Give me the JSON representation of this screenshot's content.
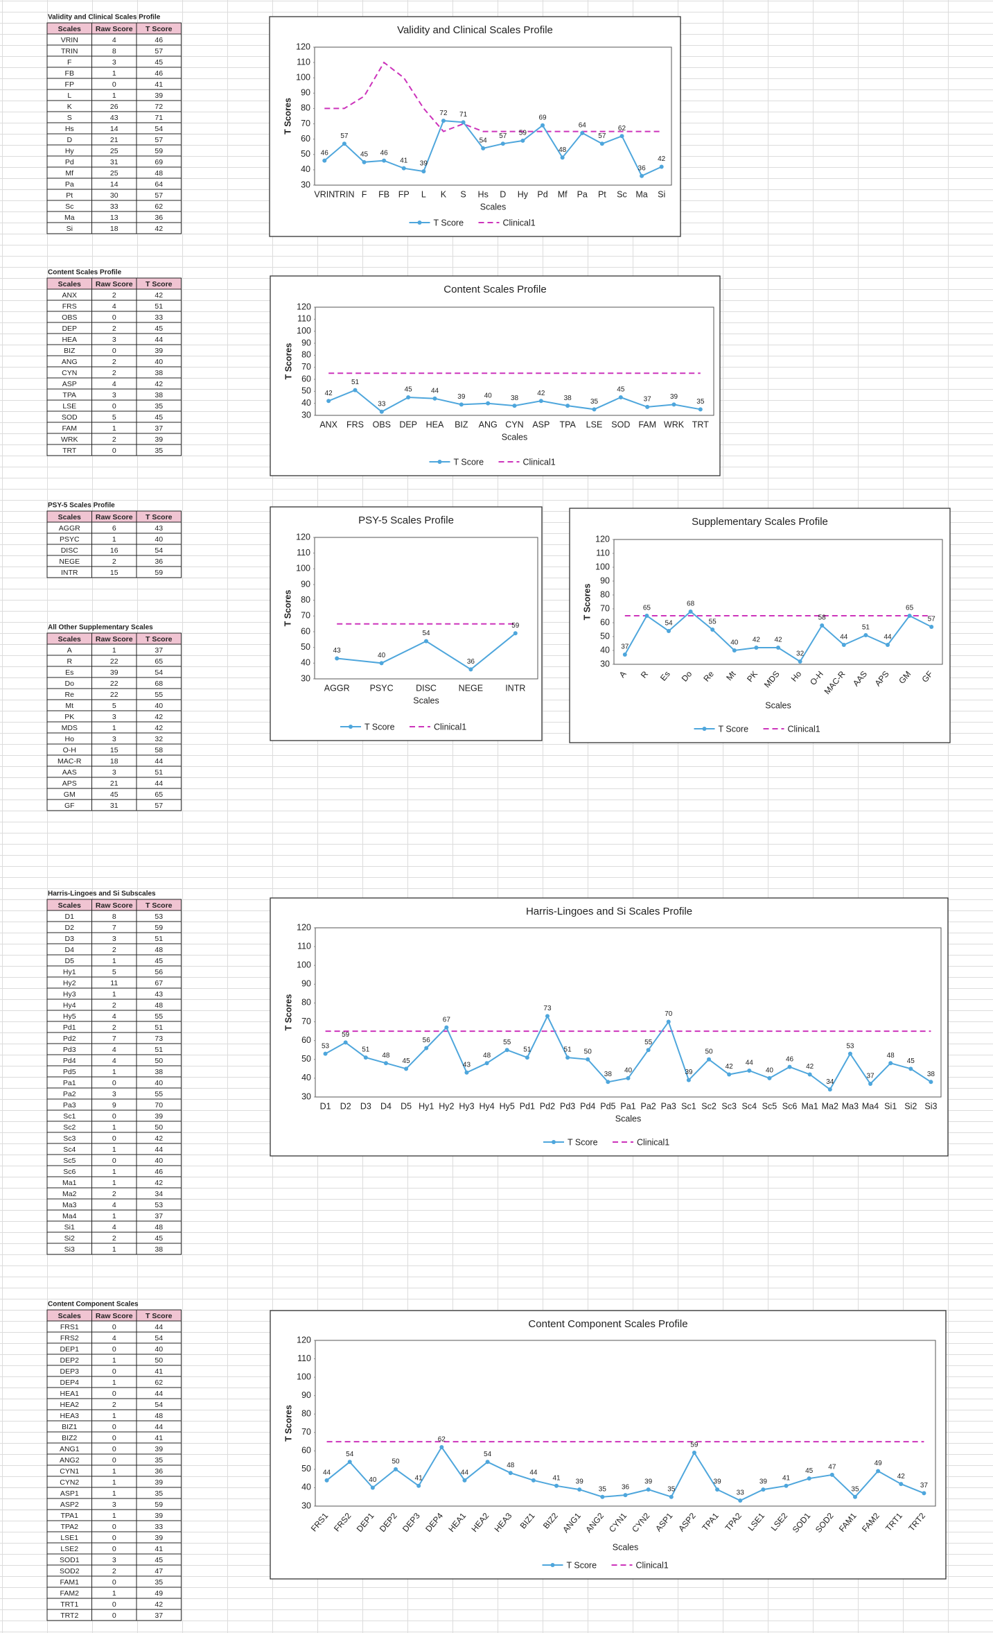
{
  "tables": [
    {
      "title": "Validity and Clinical Scales Profile",
      "header": [
        "Scales",
        "Raw Score",
        "T Score"
      ],
      "rows": [
        [
          "VRIN",
          4,
          46
        ],
        [
          "TRIN",
          8,
          57
        ],
        [
          "F",
          3,
          45
        ],
        [
          "FB",
          1,
          46
        ],
        [
          "FP",
          0,
          41
        ],
        [
          "L",
          1,
          39
        ],
        [
          "K",
          26,
          72
        ],
        [
          "S",
          43,
          71
        ],
        [
          "Hs",
          14,
          54
        ],
        [
          "D",
          21,
          57
        ],
        [
          "Hy",
          25,
          59
        ],
        [
          "Pd",
          31,
          69
        ],
        [
          "Mf",
          25,
          48
        ],
        [
          "Pa",
          14,
          64
        ],
        [
          "Pt",
          30,
          57
        ],
        [
          "Sc",
          33,
          62
        ],
        [
          "Ma",
          13,
          36
        ],
        [
          "Si",
          18,
          42
        ]
      ]
    },
    {
      "title": "Content Scales Profile",
      "header": [
        "Scales",
        "Raw Score",
        "T Score"
      ],
      "rows": [
        [
          "ANX",
          2,
          42
        ],
        [
          "FRS",
          4,
          51
        ],
        [
          "OBS",
          0,
          33
        ],
        [
          "DEP",
          2,
          45
        ],
        [
          "HEA",
          3,
          44
        ],
        [
          "BIZ",
          0,
          39
        ],
        [
          "ANG",
          2,
          40
        ],
        [
          "CYN",
          2,
          38
        ],
        [
          "ASP",
          4,
          42
        ],
        [
          "TPA",
          3,
          38
        ],
        [
          "LSE",
          0,
          35
        ],
        [
          "SOD",
          5,
          45
        ],
        [
          "FAM",
          1,
          37
        ],
        [
          "WRK",
          2,
          39
        ],
        [
          "TRT",
          0,
          35
        ]
      ]
    },
    {
      "title": "PSY-5 Scales Profile",
      "header": [
        "Scales",
        "Raw Score",
        "T Score"
      ],
      "rows": [
        [
          "AGGR",
          6,
          43
        ],
        [
          "PSYC",
          1,
          40
        ],
        [
          "DISC",
          16,
          54
        ],
        [
          "NEGE",
          2,
          36
        ],
        [
          "INTR",
          15,
          59
        ]
      ]
    },
    {
      "title": "All Other Supplementary Scales",
      "header": [
        "Scales",
        "Raw Score",
        "T Score"
      ],
      "rows": [
        [
          "A",
          1,
          37
        ],
        [
          "R",
          22,
          65
        ],
        [
          "Es",
          39,
          54
        ],
        [
          "Do",
          22,
          68
        ],
        [
          "Re",
          22,
          55
        ],
        [
          "Mt",
          5,
          40
        ],
        [
          "PK",
          3,
          42
        ],
        [
          "MDS",
          1,
          42
        ],
        [
          "Ho",
          3,
          32
        ],
        [
          "O-H",
          15,
          58
        ],
        [
          "MAC-R",
          18,
          44
        ],
        [
          "AAS",
          3,
          51
        ],
        [
          "APS",
          21,
          44
        ],
        [
          "GM",
          45,
          65
        ],
        [
          "GF",
          31,
          57
        ]
      ]
    },
    {
      "title": "Harris-Lingoes and Si Subscales",
      "header": [
        "Scales",
        "Raw Score",
        "T Score"
      ],
      "rows": [
        [
          "D1",
          8,
          53
        ],
        [
          "D2",
          7,
          59
        ],
        [
          "D3",
          3,
          51
        ],
        [
          "D4",
          2,
          48
        ],
        [
          "D5",
          1,
          45
        ],
        [
          "Hy1",
          5,
          56
        ],
        [
          "Hy2",
          11,
          67
        ],
        [
          "Hy3",
          1,
          43
        ],
        [
          "Hy4",
          2,
          48
        ],
        [
          "Hy5",
          4,
          55
        ],
        [
          "Pd1",
          2,
          51
        ],
        [
          "Pd2",
          7,
          73
        ],
        [
          "Pd3",
          4,
          51
        ],
        [
          "Pd4",
          4,
          50
        ],
        [
          "Pd5",
          1,
          38
        ],
        [
          "Pa1",
          0,
          40
        ],
        [
          "Pa2",
          3,
          55
        ],
        [
          "Pa3",
          9,
          70
        ],
        [
          "Sc1",
          0,
          39
        ],
        [
          "Sc2",
          1,
          50
        ],
        [
          "Sc3",
          0,
          42
        ],
        [
          "Sc4",
          1,
          44
        ],
        [
          "Sc5",
          0,
          40
        ],
        [
          "Sc6",
          1,
          46
        ],
        [
          "Ma1",
          1,
          42
        ],
        [
          "Ma2",
          2,
          34
        ],
        [
          "Ma3",
          4,
          53
        ],
        [
          "Ma4",
          1,
          37
        ],
        [
          "Si1",
          4,
          48
        ],
        [
          "Si2",
          2,
          45
        ],
        [
          "Si3",
          1,
          38
        ]
      ]
    },
    {
      "title": "Content Component Scales",
      "header": [
        "Scales",
        "Raw Score",
        "T Score"
      ],
      "rows": [
        [
          "FRS1",
          0,
          44
        ],
        [
          "FRS2",
          4,
          54
        ],
        [
          "DEP1",
          0,
          40
        ],
        [
          "DEP2",
          1,
          50
        ],
        [
          "DEP3",
          0,
          41
        ],
        [
          "DEP4",
          1,
          62
        ],
        [
          "HEA1",
          0,
          44
        ],
        [
          "HEA2",
          2,
          54
        ],
        [
          "HEA3",
          1,
          48
        ],
        [
          "BIZ1",
          0,
          44
        ],
        [
          "BIZ2",
          0,
          41
        ],
        [
          "ANG1",
          0,
          39
        ],
        [
          "ANG2",
          0,
          35
        ],
        [
          "CYN1",
          1,
          36
        ],
        [
          "CYN2",
          1,
          39
        ],
        [
          "ASP1",
          1,
          35
        ],
        [
          "ASP2",
          3,
          59
        ],
        [
          "TPA1",
          1,
          39
        ],
        [
          "TPA2",
          0,
          33
        ],
        [
          "LSE1",
          0,
          39
        ],
        [
          "LSE2",
          0,
          41
        ],
        [
          "SOD1",
          3,
          45
        ],
        [
          "SOD2",
          2,
          47
        ],
        [
          "FAM1",
          0,
          35
        ],
        [
          "FAM2",
          1,
          49
        ],
        [
          "TRT1",
          0,
          42
        ],
        [
          "TRT2",
          0,
          37
        ]
      ]
    }
  ],
  "chart_data": [
    {
      "type": "line",
      "title": "Validity and Clinical Scales Profile",
      "x_label": "Scales",
      "y_label": "T Scores",
      "legend": "bottom",
      "grid": false,
      "ylim": [
        30,
        120
      ],
      "yticks": [
        30,
        40,
        50,
        60,
        70,
        80,
        90,
        100,
        110,
        120
      ],
      "categories": [
        "VRIN",
        "TRIN",
        "F",
        "FB",
        "FP",
        "L",
        "K",
        "S",
        "Hs",
        "D",
        "Hy",
        "Pd",
        "Mf",
        "Pa",
        "Pt",
        "Sc",
        "Ma",
        "Si"
      ],
      "series": [
        {
          "name": "T Score",
          "color": "#4ea6dc",
          "dash": false,
          "markers": true,
          "data_labels": true,
          "values": [
            46,
            57,
            45,
            46,
            41,
            39,
            72,
            71,
            54,
            57,
            59,
            69,
            48,
            64,
            57,
            62,
            36,
            42
          ]
        },
        {
          "name": "Clinical1",
          "color": "#cc33bb",
          "dash": true,
          "markers": false,
          "data_labels": false,
          "values": [
            80,
            80,
            88,
            110,
            100,
            80,
            65,
            70,
            65,
            65,
            65,
            65,
            65,
            65,
            65,
            65,
            65,
            65
          ]
        }
      ]
    },
    {
      "type": "line",
      "title": "Content Scales Profile",
      "x_label": "Scales",
      "y_label": "T Scores",
      "legend": "bottom",
      "grid": false,
      "ylim": [
        30,
        120
      ],
      "yticks": [
        30,
        40,
        50,
        60,
        70,
        80,
        90,
        100,
        110,
        120
      ],
      "categories": [
        "ANX",
        "FRS",
        "OBS",
        "DEP",
        "HEA",
        "BIZ",
        "ANG",
        "CYN",
        "ASP",
        "TPA",
        "LSE",
        "SOD",
        "FAM",
        "WRK",
        "TRT"
      ],
      "series": [
        {
          "name": "T Score",
          "color": "#4ea6dc",
          "dash": false,
          "markers": true,
          "data_labels": true,
          "values": [
            42,
            51,
            33,
            45,
            44,
            39,
            40,
            38,
            42,
            38,
            35,
            45,
            37,
            39,
            35
          ]
        },
        {
          "name": "Clinical1",
          "color": "#cc33bb",
          "dash": true,
          "markers": false,
          "data_labels": false,
          "values": [
            65,
            65,
            65,
            65,
            65,
            65,
            65,
            65,
            65,
            65,
            65,
            65,
            65,
            65,
            65
          ]
        }
      ]
    },
    {
      "type": "line",
      "title": "PSY-5 Scales Profile",
      "x_label": "Scales",
      "y_label": "T Scores",
      "legend": "bottom",
      "grid": false,
      "ylim": [
        30,
        120
      ],
      "yticks": [
        30,
        40,
        50,
        60,
        70,
        80,
        90,
        100,
        110,
        120
      ],
      "categories": [
        "AGGR",
        "PSYC",
        "DISC",
        "NEGE",
        "INTR"
      ],
      "series": [
        {
          "name": "T Score",
          "color": "#4ea6dc",
          "dash": false,
          "markers": true,
          "data_labels": true,
          "values": [
            43,
            40,
            54,
            36,
            59
          ]
        },
        {
          "name": "Clinical1",
          "color": "#cc33bb",
          "dash": true,
          "markers": false,
          "data_labels": false,
          "values": [
            65,
            65,
            65,
            65,
            65
          ]
        }
      ]
    },
    {
      "type": "line",
      "title": "Supplementary Scales Profile",
      "x_label": "Scales",
      "y_label": "T Scores",
      "legend": "bottom",
      "grid": false,
      "ylim": [
        30,
        120
      ],
      "yticks": [
        30,
        40,
        50,
        60,
        70,
        80,
        90,
        100,
        110,
        120
      ],
      "categories": [
        "A",
        "R",
        "Es",
        "Do",
        "Re",
        "Mt",
        "PK",
        "MDS",
        "Ho",
        "O-H",
        "MAC-R",
        "AAS",
        "APS",
        "GM",
        "GF"
      ],
      "series": [
        {
          "name": "T Score",
          "color": "#4ea6dc",
          "dash": false,
          "markers": true,
          "data_labels": true,
          "values": [
            37,
            65,
            54,
            68,
            55,
            40,
            42,
            42,
            32,
            58,
            44,
            51,
            44,
            65,
            57
          ]
        },
        {
          "name": "Clinical1",
          "color": "#cc33bb",
          "dash": true,
          "markers": false,
          "data_labels": false,
          "values": [
            65,
            65,
            65,
            65,
            65,
            65,
            65,
            65,
            65,
            65,
            65,
            65,
            65,
            65,
            65
          ]
        }
      ]
    },
    {
      "type": "line",
      "title": "Harris-Lingoes and Si Scales Profile",
      "x_label": "Scales",
      "y_label": "T Scores",
      "legend": "bottom",
      "grid": false,
      "ylim": [
        30,
        120
      ],
      "yticks": [
        30,
        40,
        50,
        60,
        70,
        80,
        90,
        100,
        110,
        120
      ],
      "categories": [
        "D1",
        "D2",
        "D3",
        "D4",
        "D5",
        "Hy1",
        "Hy2",
        "Hy3",
        "Hy4",
        "Hy5",
        "Pd1",
        "Pd2",
        "Pd3",
        "Pd4",
        "Pd5",
        "Pa1",
        "Pa2",
        "Pa3",
        "Sc1",
        "Sc2",
        "Sc3",
        "Sc4",
        "Sc5",
        "Sc6",
        "Ma1",
        "Ma2",
        "Ma3",
        "Ma4",
        "Si1",
        "Si2",
        "Si3"
      ],
      "series": [
        {
          "name": "T Score",
          "color": "#4ea6dc",
          "dash": false,
          "markers": true,
          "data_labels": true,
          "values": [
            53,
            59,
            51,
            48,
            45,
            56,
            67,
            43,
            48,
            55,
            51,
            73,
            51,
            50,
            38,
            40,
            55,
            70,
            39,
            50,
            42,
            44,
            40,
            46,
            42,
            34,
            53,
            37,
            48,
            45,
            38
          ]
        },
        {
          "name": "Clinical1",
          "color": "#cc33bb",
          "dash": true,
          "markers": false,
          "data_labels": false,
          "values": [
            65,
            65,
            65,
            65,
            65,
            65,
            65,
            65,
            65,
            65,
            65,
            65,
            65,
            65,
            65,
            65,
            65,
            65,
            65,
            65,
            65,
            65,
            65,
            65,
            65,
            65,
            65,
            65,
            65,
            65,
            65
          ]
        }
      ]
    },
    {
      "type": "line",
      "title": "Content Component Scales Profile",
      "x_label": "Scales",
      "y_label": "T Scores",
      "legend": "bottom",
      "grid": false,
      "ylim": [
        30,
        120
      ],
      "yticks": [
        30,
        40,
        50,
        60,
        70,
        80,
        90,
        100,
        110,
        120
      ],
      "categories": [
        "FRS1",
        "FRS2",
        "DEP1",
        "DEP2",
        "DEP3",
        "DEP4",
        "HEA1",
        "HEA2",
        "HEA3",
        "BIZ1",
        "BIZ2",
        "ANG1",
        "ANG2",
        "CYN1",
        "CYN2",
        "ASP1",
        "ASP2",
        "TPA1",
        "TPA2",
        "LSE1",
        "LSE2",
        "SOD1",
        "SOD2",
        "FAM1",
        "FAM2",
        "TRT1",
        "TRT2"
      ],
      "series": [
        {
          "name": "T Score",
          "color": "#4ea6dc",
          "dash": false,
          "markers": true,
          "data_labels": true,
          "values": [
            44,
            54,
            40,
            50,
            41,
            62,
            44,
            54,
            48,
            44,
            41,
            39,
            35,
            36,
            39,
            35,
            59,
            39,
            33,
            39,
            41,
            45,
            47,
            35,
            49,
            42,
            37
          ]
        },
        {
          "name": "Clinical1",
          "color": "#cc33bb",
          "dash": true,
          "markers": false,
          "data_labels": false,
          "values": [
            65,
            65,
            65,
            65,
            65,
            65,
            65,
            65,
            65,
            65,
            65,
            65,
            65,
            65,
            65,
            65,
            65,
            65,
            65,
            65,
            65,
            65,
            65,
            65,
            65,
            65,
            65
          ]
        }
      ]
    }
  ]
}
